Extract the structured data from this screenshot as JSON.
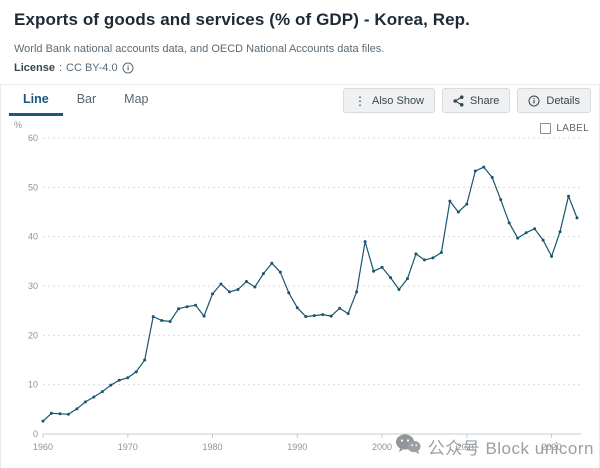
{
  "header": {
    "title": "Exports of goods and services (% of GDP) - Korea, Rep.",
    "source": "World Bank national accounts data, and OECD National Accounts data files.",
    "license_label": "License",
    "license_separator": ":",
    "license_value": "CC BY-4.0"
  },
  "tabs": [
    {
      "label": "Line",
      "active": true
    },
    {
      "label": "Bar",
      "active": false
    },
    {
      "label": "Map",
      "active": false
    }
  ],
  "toolbar": {
    "also_show_label": "Also Show",
    "share_label": "Share",
    "details_label": "Details"
  },
  "chart_controls": {
    "unit_label": "%",
    "label_checkbox_text": "LABEL",
    "label_checked": false
  },
  "watermark": {
    "icon": "wechat-icon",
    "text": "公众号 Block unicorn"
  },
  "colors": {
    "line": "#1a5570",
    "grid": "#d9dcde",
    "axis": "#c7cbce",
    "tick_label": "#8b939a",
    "accent": "#1b567c"
  },
  "chart_data": {
    "type": "line",
    "title": "Exports of goods and services (% of GDP) - Korea, Rep.",
    "xlabel": "",
    "ylabel": "%",
    "ylim": [
      0,
      60
    ],
    "yticks": [
      0,
      10,
      20,
      30,
      40,
      50,
      60
    ],
    "xticks": [
      1960,
      1970,
      1980,
      1990,
      2000,
      2010,
      2020
    ],
    "grid": true,
    "legend": "none",
    "x": [
      1960,
      1961,
      1962,
      1963,
      1964,
      1965,
      1966,
      1967,
      1968,
      1969,
      1970,
      1971,
      1972,
      1973,
      1974,
      1975,
      1976,
      1977,
      1978,
      1979,
      1980,
      1981,
      1982,
      1983,
      1984,
      1985,
      1986,
      1987,
      1988,
      1989,
      1990,
      1991,
      1992,
      1993,
      1994,
      1995,
      1996,
      1997,
      1998,
      1999,
      2000,
      2001,
      2002,
      2003,
      2004,
      2005,
      2006,
      2007,
      2008,
      2009,
      2010,
      2011,
      2012,
      2013,
      2014,
      2015,
      2016,
      2017,
      2018,
      2019,
      2020,
      2021,
      2022,
      2023
    ],
    "series": [
      {
        "name": "Korea, Rep.",
        "values": [
          2.6,
          4.2,
          4.1,
          4.0,
          5.1,
          6.5,
          7.5,
          8.6,
          9.9,
          10.9,
          11.4,
          12.6,
          15.0,
          23.8,
          23.0,
          22.8,
          25.4,
          25.8,
          26.1,
          23.9,
          28.4,
          30.4,
          28.8,
          29.3,
          30.9,
          29.8,
          32.5,
          34.6,
          32.8,
          28.6,
          25.6,
          23.8,
          24.0,
          24.2,
          23.9,
          25.5,
          24.4,
          28.8,
          39.0,
          33.0,
          33.8,
          31.7,
          29.3,
          31.5,
          36.5,
          35.3,
          35.7,
          36.8,
          47.2,
          45.0,
          46.6,
          53.3,
          54.1,
          52.0,
          47.5,
          42.8,
          39.7,
          40.8,
          41.6,
          39.3,
          36.0,
          41.0,
          48.2,
          43.8
        ]
      }
    ]
  }
}
